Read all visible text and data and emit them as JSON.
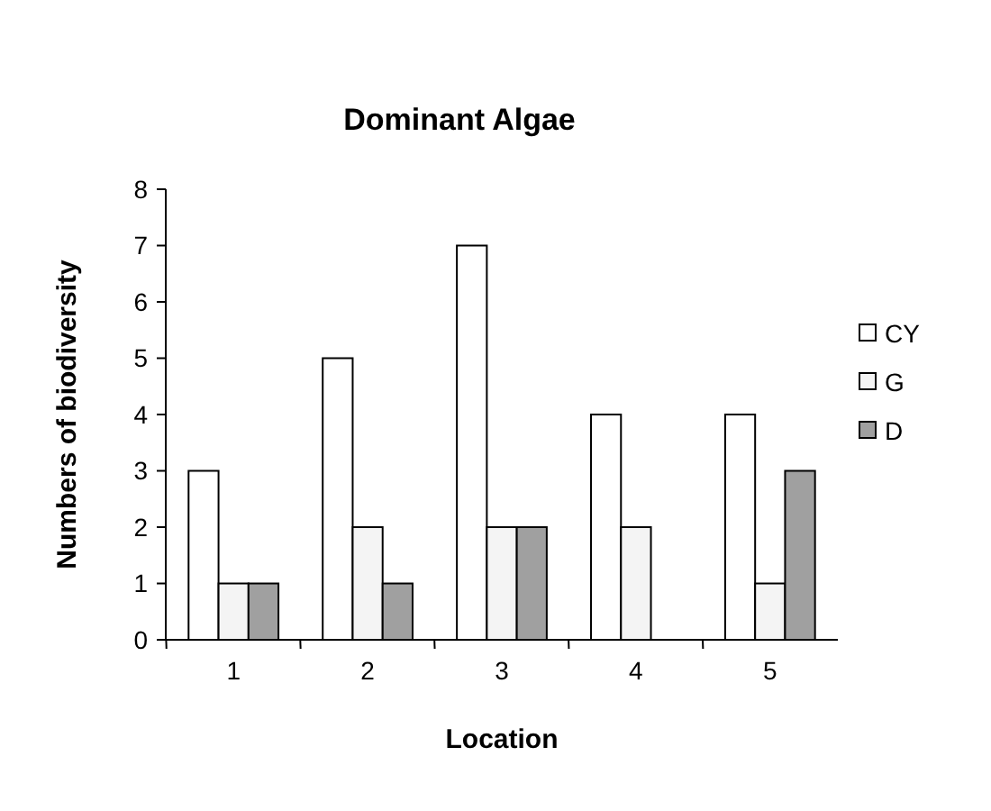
{
  "chart_data": {
    "type": "bar",
    "title": "Dominant Algae",
    "xlabel": "Location",
    "ylabel": "Numbers of biodiversity",
    "categories": [
      "1",
      "2",
      "3",
      "4",
      "5"
    ],
    "series": [
      {
        "name": "CY",
        "color": "#ffffff",
        "values": [
          3,
          5,
          7,
          4,
          4
        ]
      },
      {
        "name": "G",
        "color": "#f4f4f4",
        "values": [
          1,
          2,
          2,
          2,
          1
        ]
      },
      {
        "name": "D",
        "color": "#a0a0a0",
        "values": [
          1,
          1,
          2,
          0,
          3
        ]
      }
    ],
    "ylim": [
      0,
      8
    ],
    "yticks": [
      0,
      1,
      2,
      3,
      4,
      5,
      6,
      7,
      8
    ],
    "grid": false,
    "legend": "right"
  }
}
